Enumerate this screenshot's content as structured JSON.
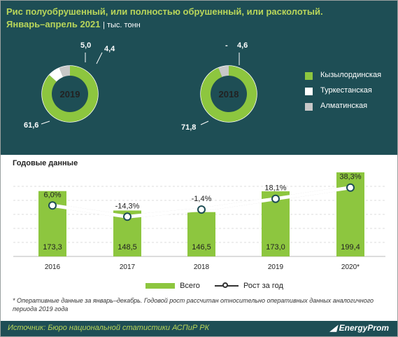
{
  "header": {
    "title_line1": "Рис полуобрушенный, или полностью обрушенный, или расколотый.",
    "title_line2": "Январь–апрель 2021",
    "units": "| тыс. тонн"
  },
  "donuts": [
    {
      "year": "2019",
      "slices": [
        {
          "region": "Кызылординская",
          "value": 61.6,
          "label": "61,6",
          "color": "#8dc63f"
        },
        {
          "region": "Туркестанская",
          "value": 5.0,
          "label": "5,0",
          "color": "#ffffff"
        },
        {
          "region": "Алматинская",
          "value": 4.4,
          "label": "4,4",
          "color": "#c8c8c8"
        }
      ]
    },
    {
      "year": "2018",
      "slices": [
        {
          "region": "Кызылординская",
          "value": 71.8,
          "label": "71,8",
          "color": "#8dc63f"
        },
        {
          "region": "Туркестанская",
          "value": 0,
          "label": "-",
          "color": "#ffffff"
        },
        {
          "region": "Алматинская",
          "value": 4.6,
          "label": "4,6",
          "color": "#c8c8c8"
        }
      ]
    }
  ],
  "legend_top": [
    {
      "label": "Кызылординская",
      "color": "#8dc63f"
    },
    {
      "label": "Туркестанская",
      "color": "#ffffff"
    },
    {
      "label": "Алматинская",
      "color": "#c8c8c8"
    }
  ],
  "chart_data": {
    "type": "bar",
    "title": "Годовые данные",
    "categories": [
      "2016",
      "2017",
      "2018",
      "2019",
      "2020*"
    ],
    "series": [
      {
        "name": "Всего",
        "values": [
          173.3,
          148.5,
          146.5,
          173.0,
          199.4
        ],
        "labels": [
          "173,3",
          "148,5",
          "146,5",
          "173,0",
          "199,4"
        ],
        "color": "#8dc63f"
      },
      {
        "name": "Рост за год",
        "type": "line",
        "values": [
          6.0,
          -14.3,
          -1.4,
          18.1,
          38.3
        ],
        "labels": [
          "6,0%",
          "-14,3%",
          "-1,4%",
          "18,1%",
          "38,3%"
        ],
        "color": "#ffffff"
      }
    ],
    "grid": true
  },
  "bottom_legend": {
    "bars": "Всего",
    "line": "Рост за год"
  },
  "note": "* Оперативные данные за январь–декабрь. Годовой рост рассчитан относительно оперативных данных аналогичного периода 2019 года",
  "footer": {
    "source": "Источник: Бюро национальной статистики АСПиР РК",
    "brand": "EnergyProm"
  }
}
